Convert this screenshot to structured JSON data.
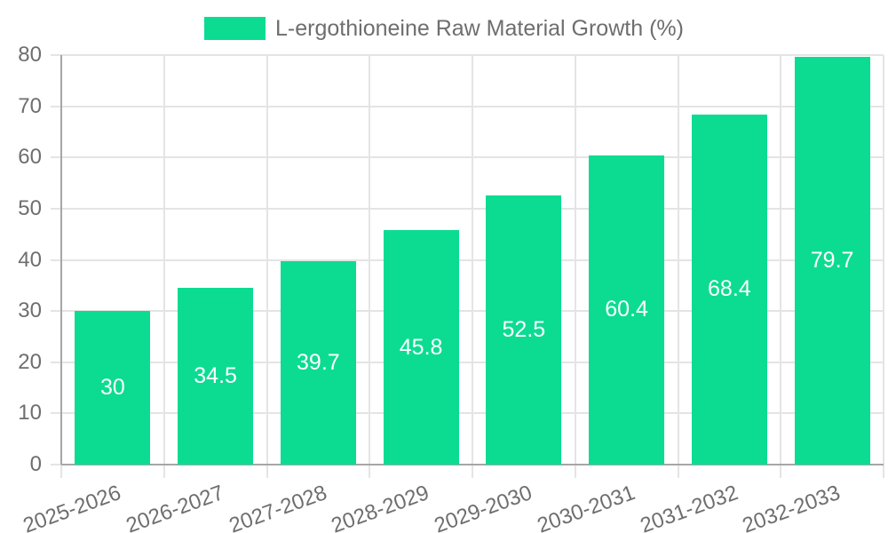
{
  "chart_data": {
    "type": "bar",
    "title": "",
    "categories": [
      "2025-2026",
      "2026-2027",
      "2027-2028",
      "2028-2029",
      "2029-2030",
      "2030-2031",
      "2031-2032",
      "2032-2033"
    ],
    "series": [
      {
        "name": "L-ergothioneine Raw Material Growth (%)",
        "values": [
          30,
          34.5,
          39.7,
          45.8,
          52.5,
          60.4,
          68.4,
          79.7
        ]
      }
    ],
    "value_labels": [
      "30",
      "34.5",
      "39.7",
      "45.8",
      "52.5",
      "60.4",
      "68.4",
      "79.7"
    ],
    "xlabel": "",
    "ylabel": "",
    "ylim": [
      0,
      80
    ],
    "y_tick_step": 10,
    "y_tick_labels": [
      "0",
      "10",
      "20",
      "30",
      "40",
      "50",
      "60",
      "70",
      "80"
    ],
    "grid": true,
    "legend_position": "top-center",
    "value_label_position": "inside-center",
    "colors": {
      "bar": "#0cdc92",
      "value_label": "#ffffff",
      "tick_label": "#6e6e6e",
      "legend_label": "#6e6e6e",
      "gridline": "#e4e4e4",
      "axis": "#a6a6a6",
      "background": "#ffffff"
    }
  }
}
